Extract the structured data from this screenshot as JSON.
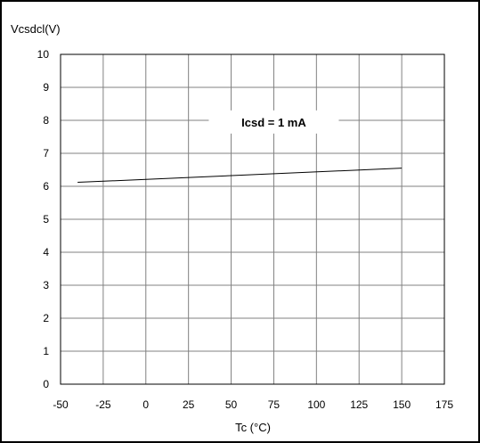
{
  "chart_data": {
    "type": "line",
    "title": "",
    "xlabel": "Tc (°C)",
    "ylabel": "Vcsdcl(V)",
    "xlim": [
      -50,
      175
    ],
    "ylim": [
      0,
      10
    ],
    "xticks": [
      -50,
      -25,
      0,
      25,
      50,
      75,
      100,
      125,
      150,
      175
    ],
    "yticks": [
      0,
      1,
      2,
      3,
      4,
      5,
      6,
      7,
      8,
      9,
      10
    ],
    "grid": true,
    "legend": "none",
    "series": [
      {
        "x": [
          -40,
          150
        ],
        "y": [
          6.12,
          6.55
        ]
      }
    ],
    "annotations": [
      {
        "text": "Icsd = 1 mA",
        "x": 75,
        "y": 7.95
      }
    ],
    "colors": {
      "line": "#000000",
      "grid": "#808080",
      "frame": "#000000"
    }
  }
}
